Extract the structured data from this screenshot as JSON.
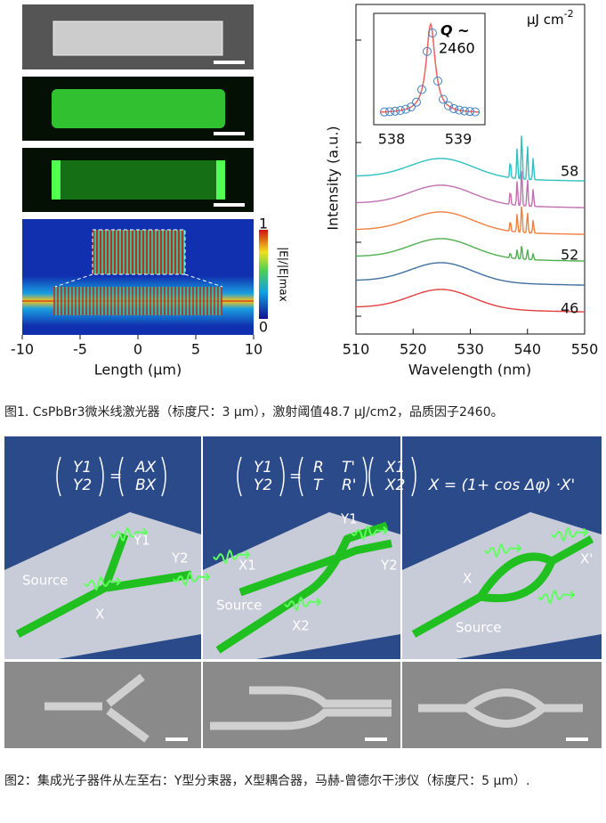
{
  "figure1": {
    "length_axis": {
      "xlim": [
        -10,
        10
      ],
      "ticks": [
        -10,
        -5,
        0,
        5,
        10
      ],
      "label": "Length (μm)"
    },
    "colorbar": {
      "max": "1",
      "min": "0",
      "label": "|E|/|E|max"
    },
    "spectrum": {
      "xlim": [
        510,
        550
      ],
      "xticks": [
        510,
        520,
        530,
        540,
        550
      ],
      "xlabel": "Wavelength (nm)",
      "ylabel": "Intensity (a.u.)",
      "unit": "μJ cm",
      "unit_exp": "-2",
      "power_labels": [
        "58",
        "52",
        "46"
      ],
      "inset": {
        "xticks": [
          "538",
          "539"
        ],
        "q_label": "Q ~",
        "q_value": "2460"
      }
    },
    "caption": "图1. CsPbBr3微米线激光器（标度尺：3 μm），激射阈值48.7 μJ/cm2，品质因子2460。"
  },
  "figure2": {
    "panels": [
      {
        "equation": {
          "left": [
            "Y1",
            "Y2"
          ],
          "equals": "=",
          "right": [
            "AX",
            "BX"
          ]
        },
        "labels": [
          "Y1",
          "Y2",
          "Source",
          "X"
        ]
      },
      {
        "equation": {
          "left": [
            "Y1",
            "Y2"
          ],
          "equals": "=",
          "matrix": [
            "R",
            "T'",
            "T",
            "R'"
          ],
          "right": [
            "X1",
            "X2"
          ]
        },
        "labels": [
          "Y1",
          "Y2",
          "X1",
          "X2",
          "Source"
        ]
      },
      {
        "equation": {
          "text": "X = (1+ cos Δφ) ·X'"
        },
        "labels": [
          "X",
          "X'",
          "Source"
        ]
      }
    ],
    "caption": "图2：集成光子器件从左至右：Y型分束器，X型耦合器，马赫-曾德尔干涉仪（标度尺：5 μm）."
  }
}
